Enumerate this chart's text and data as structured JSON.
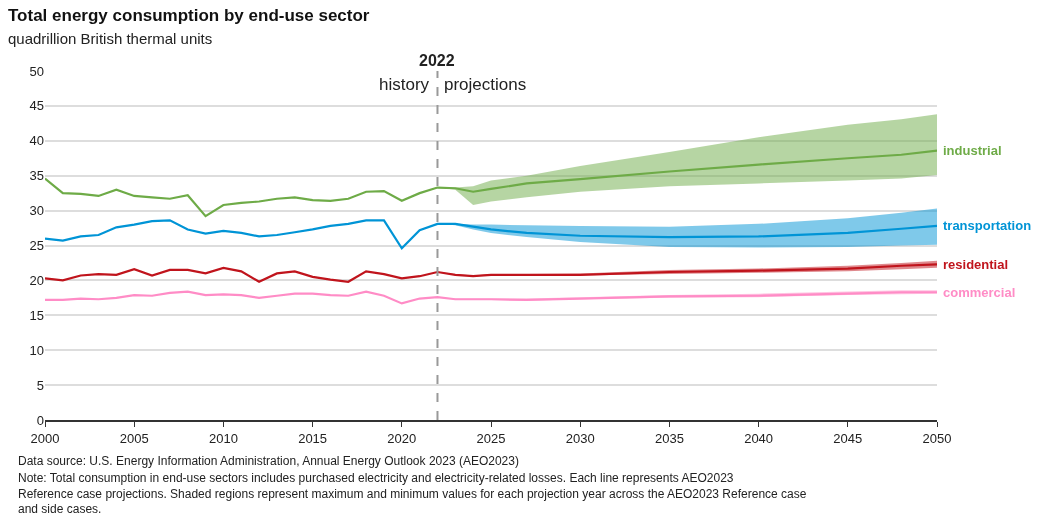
{
  "chart_data": {
    "type": "line",
    "title": "Total energy consumption by end-use sector",
    "subtitle": "quadrillion British thermal units",
    "x": [
      2000,
      2001,
      2002,
      2003,
      2004,
      2005,
      2006,
      2007,
      2008,
      2009,
      2010,
      2011,
      2012,
      2013,
      2014,
      2015,
      2016,
      2017,
      2018,
      2019,
      2020,
      2021,
      2022,
      2023,
      2024,
      2025,
      2027,
      2030,
      2035,
      2040,
      2045,
      2048,
      2050
    ],
    "series": [
      {
        "name": "industrial",
        "color": "#6eab47",
        "values": [
          34.6,
          32.5,
          32.4,
          32.1,
          33.0,
          32.1,
          31.9,
          31.7,
          32.2,
          29.2,
          30.8,
          31.1,
          31.3,
          31.7,
          31.9,
          31.5,
          31.4,
          31.7,
          32.7,
          32.8,
          31.4,
          32.5,
          33.3,
          33.2,
          32.7,
          33.1,
          33.9,
          34.5,
          35.6,
          36.6,
          37.5,
          38.0,
          38.6
        ],
        "lower": [
          null,
          null,
          null,
          null,
          null,
          null,
          null,
          null,
          null,
          null,
          null,
          null,
          null,
          null,
          null,
          null,
          null,
          null,
          null,
          null,
          null,
          null,
          33.3,
          33.0,
          30.8,
          31.3,
          31.9,
          32.7,
          33.5,
          33.9,
          34.3,
          34.6,
          35.1
        ],
        "upper": [
          null,
          null,
          null,
          null,
          null,
          null,
          null,
          null,
          null,
          null,
          null,
          null,
          null,
          null,
          null,
          null,
          null,
          null,
          null,
          null,
          null,
          null,
          33.3,
          33.3,
          33.5,
          34.3,
          35.0,
          36.4,
          38.4,
          40.5,
          42.3,
          43.1,
          43.8
        ]
      },
      {
        "name": "transportation",
        "color": "#0094d6",
        "values": [
          26.0,
          25.7,
          26.3,
          26.5,
          27.6,
          28.0,
          28.5,
          28.6,
          27.3,
          26.7,
          27.1,
          26.8,
          26.3,
          26.5,
          26.9,
          27.3,
          27.8,
          28.1,
          28.6,
          28.6,
          24.6,
          27.2,
          28.1,
          28.1,
          27.7,
          27.3,
          26.8,
          26.4,
          26.2,
          26.3,
          26.8,
          27.4,
          27.8
        ],
        "lower": [
          null,
          null,
          null,
          null,
          null,
          null,
          null,
          null,
          null,
          null,
          null,
          null,
          null,
          null,
          null,
          null,
          null,
          null,
          null,
          null,
          null,
          null,
          28.1,
          27.9,
          27.3,
          26.8,
          26.2,
          25.5,
          24.8,
          24.7,
          24.8,
          25.0,
          25.1
        ],
        "upper": [
          null,
          null,
          null,
          null,
          null,
          null,
          null,
          null,
          null,
          null,
          null,
          null,
          null,
          null,
          null,
          null,
          null,
          null,
          null,
          null,
          null,
          null,
          28.1,
          28.1,
          28.0,
          28.0,
          27.9,
          27.8,
          27.7,
          28.1,
          28.9,
          29.7,
          30.3
        ]
      },
      {
        "name": "residential",
        "color": "#c0141c",
        "values": [
          20.3,
          20.0,
          20.7,
          20.9,
          20.8,
          21.6,
          20.7,
          21.5,
          21.5,
          21.0,
          21.8,
          21.3,
          19.8,
          21.0,
          21.3,
          20.5,
          20.1,
          19.8,
          21.3,
          20.9,
          20.3,
          20.6,
          21.2,
          20.8,
          20.6,
          20.8,
          20.8,
          20.8,
          21.2,
          21.4,
          21.7,
          22.1,
          22.3
        ],
        "lower": [
          null,
          null,
          null,
          null,
          null,
          null,
          null,
          null,
          null,
          null,
          null,
          null,
          null,
          null,
          null,
          null,
          null,
          null,
          null,
          null,
          null,
          null,
          21.2,
          20.8,
          20.6,
          20.7,
          20.7,
          20.7,
          20.9,
          21.1,
          21.3,
          21.6,
          21.8
        ],
        "upper": [
          null,
          null,
          null,
          null,
          null,
          null,
          null,
          null,
          null,
          null,
          null,
          null,
          null,
          null,
          null,
          null,
          null,
          null,
          null,
          null,
          null,
          null,
          21.2,
          20.9,
          20.7,
          20.9,
          20.9,
          21.0,
          21.5,
          21.7,
          22.1,
          22.5,
          22.8
        ]
      },
      {
        "name": "commercial",
        "color": "#ff8cc6",
        "values": [
          17.2,
          17.2,
          17.4,
          17.3,
          17.5,
          17.9,
          17.8,
          18.2,
          18.4,
          17.9,
          18.0,
          17.9,
          17.5,
          17.8,
          18.1,
          18.1,
          17.9,
          17.8,
          18.4,
          17.8,
          16.7,
          17.4,
          17.6,
          17.3,
          17.3,
          17.3,
          17.2,
          17.4,
          17.7,
          17.8,
          18.1,
          18.3,
          18.3
        ],
        "lower": [
          null,
          null,
          null,
          null,
          null,
          null,
          null,
          null,
          null,
          null,
          null,
          null,
          null,
          null,
          null,
          null,
          null,
          null,
          null,
          null,
          null,
          null,
          17.6,
          17.3,
          17.2,
          17.2,
          17.1,
          17.3,
          17.5,
          17.6,
          17.9,
          18.0,
          18.1
        ],
        "upper": [
          null,
          null,
          null,
          null,
          null,
          null,
          null,
          null,
          null,
          null,
          null,
          null,
          null,
          null,
          null,
          null,
          null,
          null,
          null,
          null,
          null,
          null,
          17.6,
          17.4,
          17.4,
          17.4,
          17.4,
          17.6,
          17.9,
          18.1,
          18.4,
          18.6,
          18.6
        ]
      }
    ],
    "xlim": [
      2000,
      2050
    ],
    "xticks": [
      2000,
      2005,
      2010,
      2015,
      2020,
      2025,
      2030,
      2035,
      2040,
      2045,
      2050
    ],
    "ylim": [
      0,
      50
    ],
    "yticks": [
      0,
      5,
      10,
      15,
      20,
      25,
      30,
      35,
      40,
      45,
      50
    ],
    "grid": "y",
    "legend": false,
    "marker": "none",
    "line_style": "solid",
    "ref_lines": [
      {
        "axis": "x",
        "value": 2022,
        "label": "2022",
        "color": "#999999",
        "line_style": "dashed"
      }
    ],
    "annotations": [
      "history",
      "projections",
      "Data source: U.S. Energy Information Administration, Annual Energy Outlook 2023 (AEO2023)",
      "Note: Total consumption in end-use sectors includes purchased electricity and electricity-related losses. Each line represents AEO2023 Reference case projections. Shaded regions represent maximum and minimum values for each projection year across the AEO2023 Reference case and side cases."
    ]
  }
}
